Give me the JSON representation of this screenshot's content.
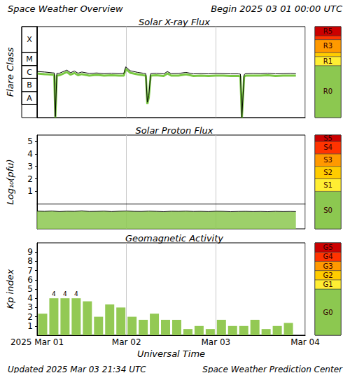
{
  "header": {
    "title": "Space Weather Overview",
    "begin": "Begin 2025 03 01 00:00 UTC"
  },
  "footer": {
    "updated": "Updated 2025 Mar 03 21:34 UTC",
    "credit": "Space Weather Prediction Center"
  },
  "chart_data": [
    {
      "type": "line",
      "title": "Solar X-ray Flux",
      "ylabel": "Flare Class",
      "log": "y",
      "grid": "x",
      "tick_labels": "y",
      "xlim": [
        0,
        72
      ],
      "xticks": [
        0,
        24,
        48,
        72
      ],
      "ylim": [
        1e-09,
        0.01
      ],
      "flare_classes": [
        {
          "label": "A",
          "from": 1e-08,
          "to": 1e-07
        },
        {
          "label": "B",
          "from": 1e-07,
          "to": 1e-06
        },
        {
          "label": "C",
          "from": 1e-06,
          "to": 1e-05
        },
        {
          "label": "M",
          "from": 1e-05,
          "to": 0.0001
        },
        {
          "label": "X",
          "from": 0.0001,
          "to": 0.01
        }
      ],
      "scale_bands": [
        {
          "label": "R0",
          "from": 1e-09,
          "to": 1e-05,
          "color": "#8cc850"
        },
        {
          "label": "R1",
          "from": 1e-05,
          "to": 5e-05,
          "color": "#ffee33"
        },
        {
          "label": null,
          "from": 5e-05,
          "to": 0.0001,
          "color": "#ffcc00"
        },
        {
          "label": "R3",
          "from": 0.0001,
          "to": 0.001,
          "color": "#ff9900"
        },
        {
          "label": null,
          "from": 0.001,
          "to": 0.002,
          "color": "#ff3300"
        },
        {
          "label": "R5",
          "from": 0.002,
          "to": 0.01,
          "color": "#cc0000"
        }
      ],
      "x": [
        0,
        2,
        3,
        4,
        4.6,
        4.9,
        5.3,
        6,
        8,
        9,
        10,
        11,
        12,
        14,
        16,
        18,
        20,
        22,
        23.3,
        23.8,
        25,
        27,
        28.5,
        29.2,
        29.6,
        30,
        30.5,
        32,
        34,
        35,
        36,
        38,
        40,
        42,
        44,
        46,
        48,
        50,
        52,
        54,
        54.6,
        55,
        55.6,
        56,
        58,
        60,
        62,
        64,
        66,
        68,
        69.5
      ],
      "series": [
        {
          "color": "#7ac943",
          "line_style": "thick",
          "values": [
            2.5e-06,
            2.2e-06,
            2.1e-06,
            2e-06,
            1.9e-06,
            1e-09,
            1.7e-06,
            1.8e-06,
            3.2e-06,
            2e-06,
            2.7e-06,
            1.8e-06,
            2.2e-06,
            1.7e-06,
            1.9e-06,
            1.7e-06,
            1.8e-06,
            1.7e-06,
            1.7e-06,
            5.6e-06,
            2.8e-06,
            2.1e-06,
            1.8e-06,
            1.7e-06,
            1.1e-08,
            3.5e-08,
            1.7e-06,
            1.8e-06,
            1.6e-06,
            2.5e-06,
            1.7e-06,
            1.7e-06,
            2.1e-06,
            1.6e-06,
            1.7e-06,
            1.6e-06,
            1.7e-06,
            1.7e-06,
            1.6e-06,
            1.6e-06,
            1.5e-06,
            1e-09,
            1.4e-06,
            1.7e-06,
            1.7e-06,
            1.7e-06,
            1.8e-06,
            1.6e-06,
            1.7e-06,
            1.7e-06,
            1.7e-06
          ]
        },
        {
          "color": "#000000",
          "line_style": "solid",
          "values": [
            3.5e-06,
            3.2e-06,
            3e-06,
            2.8e-06,
            2.7e-06,
            1.2e-09,
            2.5e-06,
            2.6e-06,
            4.5e-06,
            2.8e-06,
            3.8e-06,
            2.6e-06,
            3.2e-06,
            2.5e-06,
            2.7e-06,
            2.4e-06,
            2.6e-06,
            2.4e-06,
            2.5e-06,
            8e-06,
            4e-06,
            3e-06,
            2.6e-06,
            2.4e-06,
            1.5e-08,
            5e-08,
            2.4e-06,
            2.6e-06,
            2.3e-06,
            3.5e-06,
            2.4e-06,
            2.5e-06,
            3e-06,
            2.3e-06,
            2.4e-06,
            2.3e-06,
            2.5e-06,
            2.4e-06,
            2.3e-06,
            2.3e-06,
            2.2e-06,
            1.1e-09,
            2e-06,
            2.4e-06,
            2.5e-06,
            2.4e-06,
            2.6e-06,
            2.3e-06,
            2.4e-06,
            2.5e-06,
            2.4e-06
          ]
        }
      ]
    },
    {
      "type": "line",
      "title": "Solar Proton Flux",
      "ylabel": "Log₁₀(pfu)",
      "grid": "x",
      "tick_labels": "y",
      "xlim": [
        0,
        72
      ],
      "xticks": [
        0,
        24,
        48,
        72
      ],
      "ylim": [
        -2,
        5.5
      ],
      "yticks": [
        1,
        2,
        3,
        4,
        5
      ],
      "scale_bands": [
        {
          "label": "S0",
          "from": -2,
          "to": 1,
          "color": "#8cc850"
        },
        {
          "label": "S1",
          "from": 1,
          "to": 2,
          "color": "#ffee33"
        },
        {
          "label": "S2",
          "from": 2,
          "to": 3,
          "color": "#ffcc00"
        },
        {
          "label": "S3",
          "from": 3,
          "to": 4,
          "color": "#ff9900"
        },
        {
          "label": "S4",
          "from": 4,
          "to": 5,
          "color": "#ff3300"
        },
        {
          "label": "S5",
          "from": 5,
          "to": 5.5,
          "color": "#cc0000"
        }
      ],
      "x": [
        0,
        2,
        4,
        6,
        8,
        10,
        12,
        14,
        16,
        18,
        20,
        22,
        24,
        26,
        28,
        30,
        32,
        34,
        36,
        38,
        40,
        42,
        44,
        46,
        48,
        50,
        52,
        54,
        56,
        58,
        60,
        62,
        64,
        66,
        68,
        69.5
      ],
      "series": [
        {
          "type": "area",
          "color": "#8cc850",
          "values": [
            -0.58,
            -0.6,
            -0.57,
            -0.62,
            -0.59,
            -0.6,
            -0.56,
            -0.61,
            -0.6,
            -0.58,
            -0.62,
            -0.59,
            -0.57,
            -0.6,
            -0.61,
            -0.58,
            -0.6,
            -0.63,
            -0.59,
            -0.6,
            -0.58,
            -0.61,
            -0.6,
            -0.62,
            -0.59,
            -0.6,
            -0.63,
            -0.61,
            -0.6,
            -0.62,
            -0.61,
            -0.63,
            -0.6,
            -0.62,
            -0.61,
            -0.62
          ]
        }
      ]
    },
    {
      "type": "bar",
      "title": "Geomagnetic Activity",
      "ylabel": "Kp index",
      "xlabel": "Universal Time",
      "grid": "x",
      "data_labels": true,
      "xlim": [
        0,
        72
      ],
      "xticks": [
        {
          "value": 0,
          "label": "2025 Mar 01"
        },
        {
          "value": 24,
          "label": "Mar 02"
        },
        {
          "value": 48,
          "label": "Mar 03"
        },
        {
          "value": 72,
          "label": "Mar 04"
        }
      ],
      "ylim": [
        0,
        10
      ],
      "yticks": [
        1,
        2,
        3,
        4,
        5,
        6,
        7,
        8,
        9
      ],
      "scale_bands": [
        {
          "label": "G0",
          "from": 0,
          "to": 5,
          "color": "#8cc850"
        },
        {
          "label": "G1",
          "from": 5,
          "to": 6,
          "color": "#ffee33"
        },
        {
          "label": "G2",
          "from": 6,
          "to": 7,
          "color": "#ffcc00"
        },
        {
          "label": "G3",
          "from": 7,
          "to": 8,
          "color": "#ff9900"
        },
        {
          "label": "G4",
          "from": 8,
          "to": 9,
          "color": "#ff3300"
        },
        {
          "label": "G5",
          "from": 9,
          "to": 10,
          "color": "#cc0000"
        }
      ],
      "x": [
        1.5,
        4.5,
        7.5,
        10.5,
        13.5,
        16.5,
        19.5,
        22.5,
        25.5,
        28.5,
        31.5,
        34.5,
        37.5,
        40.5,
        43.5,
        46.5,
        49.5,
        52.5,
        55.5,
        58.5,
        61.5,
        64.5,
        67.5
      ],
      "series": [
        {
          "color": "#93c954",
          "values": [
            2.33,
            4,
            4,
            4,
            3.67,
            2,
            3.33,
            3,
            2,
            1.67,
            2.33,
            1.67,
            1.67,
            0.67,
            1,
            0.67,
            1.67,
            1,
            1,
            1.67,
            0.67,
            1,
            1.33
          ],
          "value_labels": [
            null,
            "4",
            "4",
            "4",
            null,
            null,
            null,
            null,
            null,
            null,
            null,
            null,
            null,
            null,
            null,
            null,
            null,
            null,
            null,
            null,
            null,
            null,
            null
          ]
        }
      ]
    }
  ]
}
